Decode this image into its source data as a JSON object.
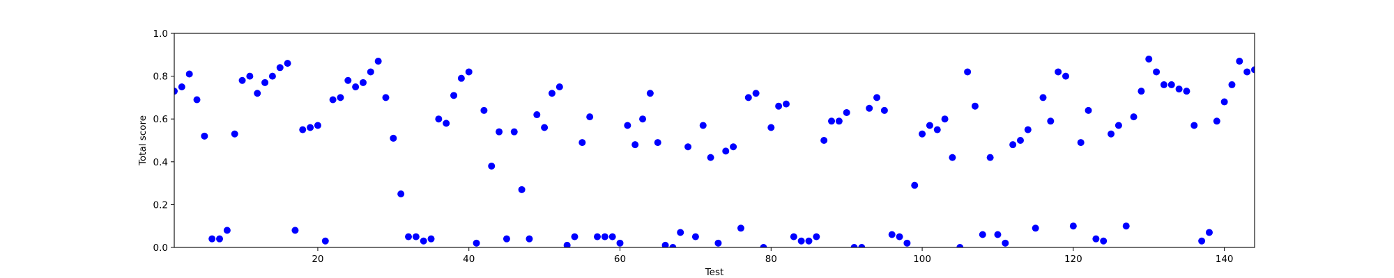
{
  "chart_data": {
    "type": "scatter",
    "title": "",
    "xlabel": "Test",
    "ylabel": "Total score",
    "xlim": [
      1,
      144
    ],
    "ylim": [
      0.0,
      1.0
    ],
    "xticks": [
      20,
      40,
      60,
      80,
      100,
      120,
      140
    ],
    "xtick_labels": [
      "20",
      "40",
      "60",
      "80",
      "100",
      "120",
      "140"
    ],
    "yticks": [
      0.0,
      0.2,
      0.4,
      0.6,
      0.8,
      1.0
    ],
    "ytick_labels": [
      "0.0",
      "0.2",
      "0.4",
      "0.6",
      "0.8",
      "1.0"
    ],
    "grid": false,
    "legend": "none",
    "marker_color": "#0000ff",
    "series": [
      {
        "x": [
          1,
          2,
          3,
          4,
          5,
          6,
          7,
          8,
          9,
          10,
          11,
          12,
          13,
          14,
          15,
          16,
          17,
          18,
          19,
          20,
          21,
          22,
          23,
          24,
          25,
          26,
          27,
          28,
          29,
          30,
          31,
          32,
          33,
          34,
          35,
          36,
          37,
          38,
          39,
          40,
          41,
          42,
          43,
          44,
          45,
          46,
          47,
          48,
          49,
          50,
          51,
          52,
          53,
          54,
          55,
          56,
          57,
          58,
          59,
          60,
          61,
          62,
          63,
          64,
          65,
          66,
          67,
          68,
          69,
          70,
          71,
          72,
          73,
          74,
          75,
          76,
          77,
          78,
          79,
          80,
          81,
          82,
          83,
          84,
          85,
          86,
          87,
          88,
          89,
          90,
          91,
          92,
          93,
          94,
          95,
          96,
          97,
          98,
          99,
          100,
          101,
          102,
          103,
          104,
          105,
          106,
          107,
          108,
          109,
          110,
          111,
          112,
          113,
          114,
          115,
          116,
          117,
          118,
          119,
          120,
          121,
          122,
          123,
          124,
          125,
          126,
          127,
          128,
          129,
          130,
          131,
          132,
          133,
          134,
          135,
          136,
          137,
          138,
          139,
          140,
          141,
          142,
          143,
          144
        ],
        "y": [
          0.73,
          0.75,
          0.81,
          0.69,
          0.52,
          0.04,
          0.04,
          0.08,
          0.53,
          0.78,
          0.8,
          0.72,
          0.77,
          0.8,
          0.84,
          0.86,
          0.08,
          0.55,
          0.56,
          0.57,
          0.03,
          0.69,
          0.7,
          0.78,
          0.75,
          0.77,
          0.82,
          0.87,
          0.7,
          0.51,
          0.25,
          0.05,
          0.05,
          0.03,
          0.04,
          0.6,
          0.58,
          0.71,
          0.79,
          0.82,
          0.02,
          0.64,
          0.38,
          0.54,
          0.04,
          0.54,
          0.27,
          0.04,
          0.62,
          0.56,
          0.72,
          0.75,
          0.01,
          0.05,
          0.49,
          0.61,
          0.05,
          0.05,
          0.05,
          0.02,
          0.57,
          0.48,
          0.6,
          0.72,
          0.49,
          0.01,
          0.0,
          0.07,
          0.47,
          0.05,
          0.57,
          0.42,
          0.02,
          0.45,
          0.47,
          0.09,
          0.7,
          0.72,
          0.0,
          0.56,
          0.66,
          0.67,
          0.05,
          0.03,
          0.03,
          0.05,
          0.5,
          0.59,
          0.59,
          0.63,
          0.0,
          0.0,
          0.65,
          0.7,
          0.64,
          0.06,
          0.05,
          0.02,
          0.29,
          0.53,
          0.57,
          0.55,
          0.6,
          0.42,
          0.0,
          0.82,
          0.66,
          0.06,
          0.42,
          0.06,
          0.02,
          0.48,
          0.5,
          0.55,
          0.09,
          0.7,
          0.59,
          0.82,
          0.8,
          0.1,
          0.49,
          0.64,
          0.04,
          0.03,
          0.53,
          0.57,
          0.1,
          0.61,
          0.73,
          0.88,
          0.82,
          0.76,
          0.76,
          0.74,
          0.73,
          0.57,
          0.03,
          0.07,
          0.59,
          0.68,
          0.76,
          0.87,
          0.82,
          0.83
        ]
      }
    ]
  }
}
